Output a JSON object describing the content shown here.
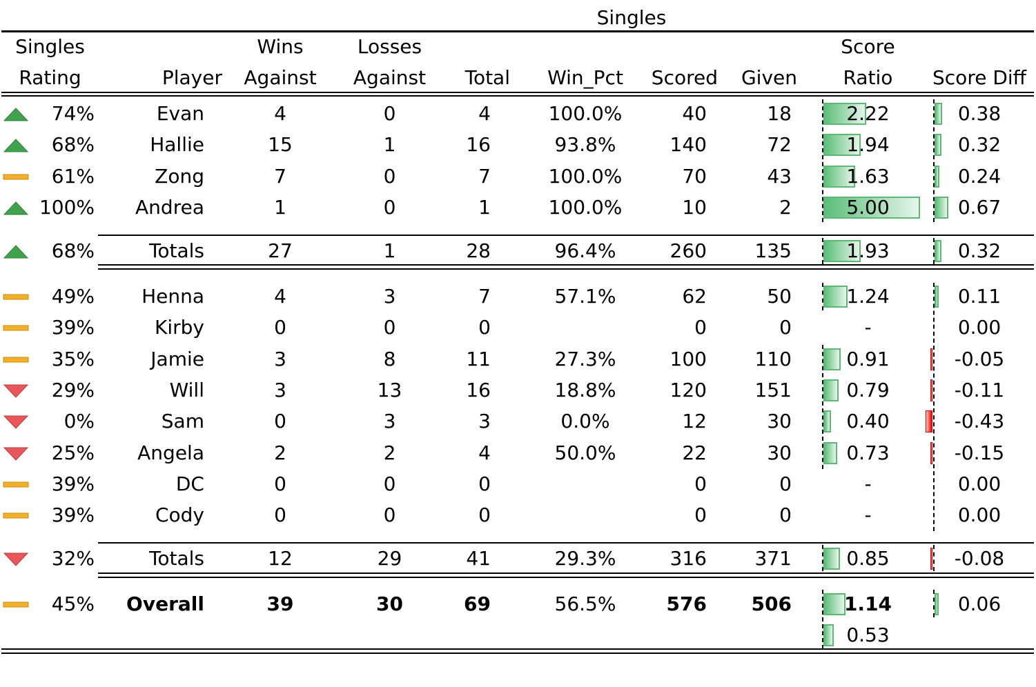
{
  "group_title": "Singles",
  "headers": {
    "rating_l1": "Singles",
    "rating_l2": "Rating",
    "player": "Player",
    "wins_l1": "Wins",
    "wins_l2": "Against",
    "losses_l1": "Losses",
    "losses_l2": "Against",
    "total": "Total",
    "win_pct": "Win_Pct",
    "scored": "Scored",
    "given": "Given",
    "ratio_l1": "Score",
    "ratio_l2": "Ratio",
    "diff": "Score Diff"
  },
  "rows": [
    {
      "icon": "up-triangle-icon",
      "rating": "74%",
      "player": "Evan",
      "wins": "4",
      "losses": "0",
      "total": "4",
      "win_pct": "100.0%",
      "scored": "40",
      "given": "18",
      "ratio": "2.22",
      "ratio_val": 2.22,
      "diff": "0.38",
      "diff_val": 0.38
    },
    {
      "icon": "up-triangle-icon",
      "rating": "68%",
      "player": "Hallie",
      "wins": "15",
      "losses": "1",
      "total": "16",
      "win_pct": "93.8%",
      "scored": "140",
      "given": "72",
      "ratio": "1.94",
      "ratio_val": 1.94,
      "diff": "0.32",
      "diff_val": 0.32
    },
    {
      "icon": "flat-dash-icon",
      "rating": "61%",
      "player": "Zong",
      "wins": "7",
      "losses": "0",
      "total": "7",
      "win_pct": "100.0%",
      "scored": "70",
      "given": "43",
      "ratio": "1.63",
      "ratio_val": 1.63,
      "diff": "0.24",
      "diff_val": 0.24
    },
    {
      "icon": "up-triangle-icon",
      "rating": "100%",
      "player": "Andrea",
      "wins": "1",
      "losses": "0",
      "total": "1",
      "win_pct": "100.0%",
      "scored": "10",
      "given": "2",
      "ratio": "5.00",
      "ratio_val": 5.0,
      "diff": "0.67",
      "diff_val": 0.67
    },
    {
      "icon": "up-triangle-icon",
      "rating": "68%",
      "player": "Totals",
      "wins": "27",
      "losses": "1",
      "total": "28",
      "win_pct": "96.4%",
      "scored": "260",
      "given": "135",
      "ratio": "1.93",
      "ratio_val": 1.93,
      "diff": "0.32",
      "diff_val": 0.32
    },
    {
      "icon": "flat-dash-icon",
      "rating": "49%",
      "player": "Henna",
      "wins": "4",
      "losses": "3",
      "total": "7",
      "win_pct": "57.1%",
      "scored": "62",
      "given": "50",
      "ratio": "1.24",
      "ratio_val": 1.24,
      "diff": "0.11",
      "diff_val": 0.11
    },
    {
      "icon": "flat-dash-icon",
      "rating": "39%",
      "player": "Kirby",
      "wins": "0",
      "losses": "0",
      "total": "0",
      "win_pct": "",
      "scored": "0",
      "given": "0",
      "ratio": "-",
      "ratio_val": 0,
      "diff": "0.00",
      "diff_val": 0
    },
    {
      "icon": "flat-dash-icon",
      "rating": "35%",
      "player": "Jamie",
      "wins": "3",
      "losses": "8",
      "total": "11",
      "win_pct": "27.3%",
      "scored": "100",
      "given": "110",
      "ratio": "0.91",
      "ratio_val": 0.91,
      "diff": "-0.05",
      "diff_val": -0.05
    },
    {
      "icon": "down-triangle-icon",
      "rating": "29%",
      "player": "Will",
      "wins": "3",
      "losses": "13",
      "total": "16",
      "win_pct": "18.8%",
      "scored": "120",
      "given": "151",
      "ratio": "0.79",
      "ratio_val": 0.79,
      "diff": "-0.11",
      "diff_val": -0.11
    },
    {
      "icon": "down-triangle-icon",
      "rating": "0%",
      "player": "Sam",
      "wins": "0",
      "losses": "3",
      "total": "3",
      "win_pct": "0.0%",
      "scored": "12",
      "given": "30",
      "ratio": "0.40",
      "ratio_val": 0.4,
      "diff": "-0.43",
      "diff_val": -0.43
    },
    {
      "icon": "down-triangle-icon",
      "rating": "25%",
      "player": "Angela",
      "wins": "2",
      "losses": "2",
      "total": "4",
      "win_pct": "50.0%",
      "scored": "22",
      "given": "30",
      "ratio": "0.73",
      "ratio_val": 0.73,
      "diff": "-0.15",
      "diff_val": -0.15
    },
    {
      "icon": "flat-dash-icon",
      "rating": "39%",
      "player": "DC",
      "wins": "0",
      "losses": "0",
      "total": "0",
      "win_pct": "",
      "scored": "0",
      "given": "0",
      "ratio": "-",
      "ratio_val": 0,
      "diff": "0.00",
      "diff_val": 0
    },
    {
      "icon": "flat-dash-icon",
      "rating": "39%",
      "player": "Cody",
      "wins": "0",
      "losses": "0",
      "total": "0",
      "win_pct": "",
      "scored": "0",
      "given": "0",
      "ratio": "-",
      "ratio_val": 0,
      "diff": "0.00",
      "diff_val": 0
    },
    {
      "icon": "down-triangle-icon",
      "rating": "32%",
      "player": "Totals",
      "wins": "12",
      "losses": "29",
      "total": "41",
      "win_pct": "29.3%",
      "scored": "316",
      "given": "371",
      "ratio": "0.85",
      "ratio_val": 0.85,
      "diff": "-0.08",
      "diff_val": -0.08
    },
    {
      "icon": "flat-dash-icon",
      "rating": "45%",
      "player": "Overall",
      "wins": "39",
      "losses": "30",
      "total": "69",
      "win_pct": "56.5%",
      "scored": "576",
      "given": "506",
      "ratio": "1.14",
      "ratio_val": 1.14,
      "diff": "0.06",
      "diff_val": 0.06,
      "bold": true
    },
    {
      "icon": "",
      "rating": "",
      "player": "",
      "wins": "",
      "losses": "",
      "total": "",
      "win_pct": "",
      "scored": "",
      "given": "",
      "ratio": "0.53",
      "ratio_val": 0.53,
      "diff": "",
      "diff_val": 0
    }
  ],
  "colors": {
    "up_icon": "#3fa34d",
    "flat_icon": "#f2b02a",
    "down_icon": "#e8585a",
    "pos_bar": "#5cbf7a",
    "neg_bar": "#e00000"
  }
}
